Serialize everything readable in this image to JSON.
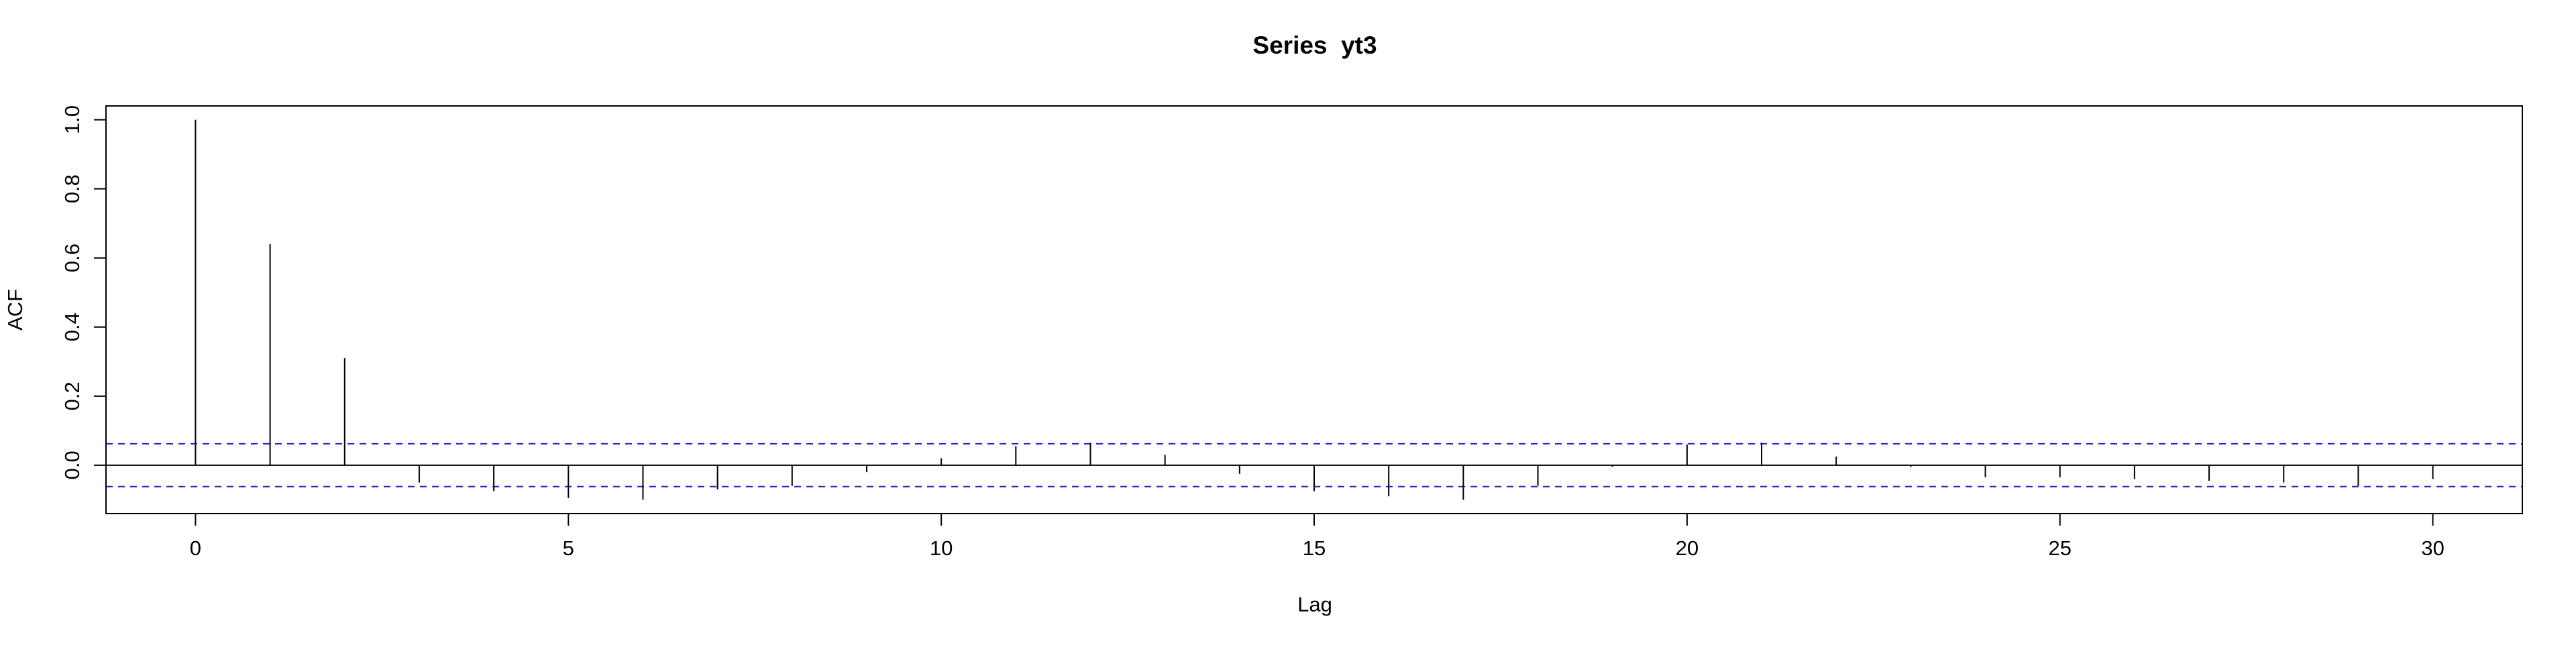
{
  "chart_data": {
    "type": "bar",
    "title": "Series  yt3",
    "xlabel": "Lag",
    "ylabel": "ACF",
    "x": [
      0,
      1,
      2,
      3,
      4,
      5,
      6,
      7,
      8,
      9,
      10,
      11,
      12,
      13,
      14,
      15,
      16,
      17,
      18,
      19,
      20,
      21,
      22,
      23,
      24,
      25,
      26,
      27,
      28,
      29,
      30
    ],
    "values": [
      1.0,
      0.64,
      0.31,
      -0.05,
      -0.075,
      -0.095,
      -0.1,
      -0.07,
      -0.06,
      -0.02,
      0.02,
      0.055,
      0.065,
      0.03,
      -0.025,
      -0.075,
      -0.09,
      -0.1,
      -0.06,
      -0.005,
      0.06,
      0.065,
      0.025,
      -0.005,
      -0.035,
      -0.035,
      -0.04,
      -0.045,
      -0.05,
      -0.06,
      -0.04
    ],
    "confidence_bound": 0.062,
    "xlim": [
      -1.2,
      31.2
    ],
    "ylim": [
      -0.14,
      1.04
    ],
    "x_ticks": [
      0,
      5,
      10,
      15,
      20,
      25,
      30
    ],
    "x_tick_labels": [
      "0",
      "5",
      "10",
      "15",
      "20",
      "25",
      "30"
    ],
    "y_ticks": [
      0.0,
      0.2,
      0.4,
      0.6,
      0.8,
      1.0
    ],
    "y_tick_labels": [
      "0.0",
      "0.2",
      "0.4",
      "0.6",
      "0.8",
      "1.0"
    ],
    "grid": false,
    "colors": {
      "bars": "#000000",
      "confidence": "#1f1fd6",
      "zero_line": "#000000"
    }
  }
}
